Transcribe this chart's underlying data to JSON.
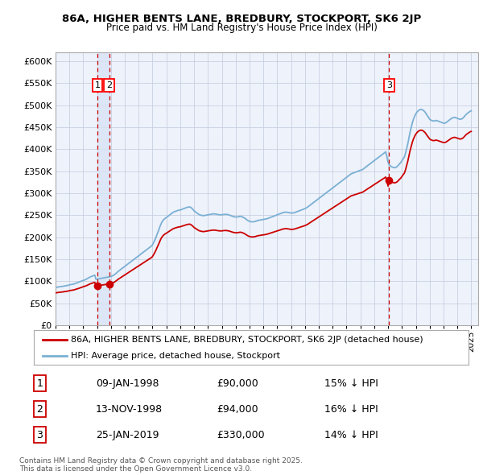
{
  "title1": "86A, HIGHER BENTS LANE, BREDBURY, STOCKPORT, SK6 2JP",
  "title2": "Price paid vs. HM Land Registry's House Price Index (HPI)",
  "ylim": [
    0,
    620000
  ],
  "yticks": [
    0,
    50000,
    100000,
    150000,
    200000,
    250000,
    300000,
    350000,
    400000,
    450000,
    500000,
    550000,
    600000
  ],
  "ytick_labels": [
    "£0",
    "£50K",
    "£100K",
    "£150K",
    "£200K",
    "£250K",
    "£300K",
    "£350K",
    "£400K",
    "£450K",
    "£500K",
    "£550K",
    "£600K"
  ],
  "xlim_start": 1995.0,
  "xlim_end": 2025.5,
  "plot_bg": "#eef2fb",
  "grid_color": "#c8d0e0",
  "sale_dates": [
    1998.03,
    1998.87,
    2019.07
  ],
  "sale_prices": [
    90000,
    94000,
    330000
  ],
  "sale_labels": [
    "1",
    "2",
    "3"
  ],
  "legend_line1": "86A, HIGHER BENTS LANE, BREDBURY, STOCKPORT, SK6 2JP (detached house)",
  "legend_line2": "HPI: Average price, detached house, Stockport",
  "table_rows": [
    [
      "1",
      "09-JAN-1998",
      "£90,000",
      "15% ↓ HPI"
    ],
    [
      "2",
      "13-NOV-1998",
      "£94,000",
      "16% ↓ HPI"
    ],
    [
      "3",
      "25-JAN-2019",
      "£330,000",
      "14% ↓ HPI"
    ]
  ],
  "footer": "Contains HM Land Registry data © Crown copyright and database right 2025.\nThis data is licensed under the Open Government Licence v3.0.",
  "red_line_color": "#cc0000",
  "blue_line_color": "#7ab0d4",
  "marker_color": "#cc0000",
  "vline_color": "#cc0000",
  "highlight_color": "#d8e4f5",
  "years_hpi": [
    1995.0,
    1995.08,
    1995.17,
    1995.25,
    1995.33,
    1995.42,
    1995.5,
    1995.58,
    1995.67,
    1995.75,
    1995.83,
    1995.92,
    1996.0,
    1996.08,
    1996.17,
    1996.25,
    1996.33,
    1996.42,
    1996.5,
    1996.58,
    1996.67,
    1996.75,
    1996.83,
    1996.92,
    1997.0,
    1997.08,
    1997.17,
    1997.25,
    1997.33,
    1997.42,
    1997.5,
    1997.58,
    1997.67,
    1997.75,
    1997.83,
    1997.92,
    1998.0,
    1998.08,
    1998.17,
    1998.25,
    1998.33,
    1998.42,
    1998.5,
    1998.58,
    1998.67,
    1998.75,
    1998.83,
    1998.92,
    1999.0,
    1999.08,
    1999.17,
    1999.25,
    1999.33,
    1999.42,
    1999.5,
    1999.58,
    1999.67,
    1999.75,
    1999.83,
    1999.92,
    2000.0,
    2000.08,
    2000.17,
    2000.25,
    2000.33,
    2000.42,
    2000.5,
    2000.58,
    2000.67,
    2000.75,
    2000.83,
    2000.92,
    2001.0,
    2001.08,
    2001.17,
    2001.25,
    2001.33,
    2001.42,
    2001.5,
    2001.58,
    2001.67,
    2001.75,
    2001.83,
    2001.92,
    2002.0,
    2002.08,
    2002.17,
    2002.25,
    2002.33,
    2002.42,
    2002.5,
    2002.58,
    2002.67,
    2002.75,
    2002.83,
    2002.92,
    2003.0,
    2003.08,
    2003.17,
    2003.25,
    2003.33,
    2003.42,
    2003.5,
    2003.58,
    2003.67,
    2003.75,
    2003.83,
    2003.92,
    2004.0,
    2004.08,
    2004.17,
    2004.25,
    2004.33,
    2004.42,
    2004.5,
    2004.58,
    2004.67,
    2004.75,
    2004.83,
    2004.92,
    2005.0,
    2005.08,
    2005.17,
    2005.25,
    2005.33,
    2005.42,
    2005.5,
    2005.58,
    2005.67,
    2005.75,
    2005.83,
    2005.92,
    2006.0,
    2006.08,
    2006.17,
    2006.25,
    2006.33,
    2006.42,
    2006.5,
    2006.58,
    2006.67,
    2006.75,
    2006.83,
    2006.92,
    2007.0,
    2007.08,
    2007.17,
    2007.25,
    2007.33,
    2007.42,
    2007.5,
    2007.58,
    2007.67,
    2007.75,
    2007.83,
    2007.92,
    2008.0,
    2008.08,
    2008.17,
    2008.25,
    2008.33,
    2008.42,
    2008.5,
    2008.58,
    2008.67,
    2008.75,
    2008.83,
    2008.92,
    2009.0,
    2009.08,
    2009.17,
    2009.25,
    2009.33,
    2009.42,
    2009.5,
    2009.58,
    2009.67,
    2009.75,
    2009.83,
    2009.92,
    2010.0,
    2010.08,
    2010.17,
    2010.25,
    2010.33,
    2010.42,
    2010.5,
    2010.58,
    2010.67,
    2010.75,
    2010.83,
    2010.92,
    2011.0,
    2011.08,
    2011.17,
    2011.25,
    2011.33,
    2011.42,
    2011.5,
    2011.58,
    2011.67,
    2011.75,
    2011.83,
    2011.92,
    2012.0,
    2012.08,
    2012.17,
    2012.25,
    2012.33,
    2012.42,
    2012.5,
    2012.58,
    2012.67,
    2012.75,
    2012.83,
    2012.92,
    2013.0,
    2013.08,
    2013.17,
    2013.25,
    2013.33,
    2013.42,
    2013.5,
    2013.58,
    2013.67,
    2013.75,
    2013.83,
    2013.92,
    2014.0,
    2014.08,
    2014.17,
    2014.25,
    2014.33,
    2014.42,
    2014.5,
    2014.58,
    2014.67,
    2014.75,
    2014.83,
    2014.92,
    2015.0,
    2015.08,
    2015.17,
    2015.25,
    2015.33,
    2015.42,
    2015.5,
    2015.58,
    2015.67,
    2015.75,
    2015.83,
    2015.92,
    2016.0,
    2016.08,
    2016.17,
    2016.25,
    2016.33,
    2016.42,
    2016.5,
    2016.58,
    2016.67,
    2016.75,
    2016.83,
    2016.92,
    2017.0,
    2017.08,
    2017.17,
    2017.25,
    2017.33,
    2017.42,
    2017.5,
    2017.58,
    2017.67,
    2017.75,
    2017.83,
    2017.92,
    2018.0,
    2018.08,
    2018.17,
    2018.25,
    2018.33,
    2018.42,
    2018.5,
    2018.58,
    2018.67,
    2018.75,
    2018.83,
    2018.92,
    2019.0,
    2019.08,
    2019.17,
    2019.25,
    2019.33,
    2019.42,
    2019.5,
    2019.58,
    2019.67,
    2019.75,
    2019.83,
    2019.92,
    2020.0,
    2020.08,
    2020.17,
    2020.25,
    2020.33,
    2020.42,
    2020.5,
    2020.58,
    2020.67,
    2020.75,
    2020.83,
    2020.92,
    2021.0,
    2021.08,
    2021.17,
    2021.25,
    2021.33,
    2021.42,
    2021.5,
    2021.58,
    2021.67,
    2021.75,
    2021.83,
    2021.92,
    2022.0,
    2022.08,
    2022.17,
    2022.25,
    2022.33,
    2022.42,
    2022.5,
    2022.58,
    2022.67,
    2022.75,
    2022.83,
    2022.92,
    2023.0,
    2023.08,
    2023.17,
    2023.25,
    2023.33,
    2023.42,
    2023.5,
    2023.58,
    2023.67,
    2023.75,
    2023.83,
    2023.92,
    2024.0,
    2024.08,
    2024.17,
    2024.25,
    2024.33,
    2024.42,
    2024.5,
    2024.58,
    2024.67,
    2024.75,
    2024.83,
    2024.92,
    2025.0
  ],
  "hpi_values": [
    86000,
    86500,
    87000,
    87500,
    87800,
    88000,
    88500,
    89000,
    89500,
    90000,
    90500,
    91000,
    92000,
    92500,
    93000,
    93500,
    94000,
    95000,
    96000,
    97000,
    98000,
    99000,
    100000,
    101000,
    102000,
    103000,
    104000,
    105500,
    107000,
    108500,
    110000,
    111000,
    112000,
    113000,
    114000,
    104500,
    105000,
    105500,
    106000,
    106500,
    107000,
    107500,
    108000,
    108500,
    109000,
    109500,
    110000,
    110500,
    111000,
    112000,
    113500,
    115000,
    117000,
    119500,
    122000,
    124000,
    126000,
    128000,
    130000,
    132000,
    134000,
    136000,
    138000,
    140000,
    142000,
    144000,
    146000,
    148000,
    150000,
    152000,
    154000,
    156000,
    158000,
    160000,
    162000,
    164000,
    166000,
    168000,
    170000,
    172000,
    174000,
    176000,
    178000,
    180000,
    183000,
    188000,
    194000,
    200000,
    207000,
    214000,
    221000,
    228000,
    234000,
    238000,
    241000,
    243000,
    245000,
    247000,
    249000,
    251000,
    253000,
    255000,
    257000,
    258000,
    259000,
    260000,
    261000,
    261500,
    262000,
    263000,
    264000,
    265000,
    266000,
    267000,
    268000,
    268500,
    269000,
    268000,
    266000,
    263000,
    260000,
    258000,
    256000,
    254000,
    252000,
    251000,
    250000,
    249500,
    249000,
    249500,
    250000,
    250500,
    251000,
    251500,
    252000,
    252500,
    253000,
    253000,
    253000,
    252500,
    252000,
    251500,
    251000,
    251000,
    251000,
    251500,
    252000,
    252000,
    252000,
    251500,
    251000,
    250000,
    249000,
    248000,
    247000,
    246500,
    246000,
    246000,
    246500,
    247000,
    247500,
    247000,
    246000,
    244500,
    243000,
    241000,
    239000,
    237500,
    236000,
    235500,
    235000,
    235000,
    235500,
    236000,
    237000,
    238000,
    238500,
    239000,
    239500,
    240000,
    240500,
    241000,
    241500,
    242000,
    243000,
    244000,
    245000,
    246000,
    247000,
    248000,
    249000,
    250000,
    251000,
    252000,
    253000,
    254000,
    255000,
    256000,
    256500,
    257000,
    257000,
    256500,
    256000,
    255500,
    255000,
    255000,
    255500,
    256000,
    257000,
    258000,
    259000,
    260000,
    261000,
    262000,
    263000,
    264000,
    265000,
    266500,
    268000,
    270000,
    272000,
    274000,
    276000,
    278000,
    280000,
    282000,
    284000,
    286000,
    288000,
    290000,
    292000,
    294000,
    296000,
    298000,
    300000,
    302000,
    304000,
    306000,
    308000,
    310000,
    312000,
    314000,
    316000,
    318000,
    320000,
    322000,
    324000,
    326000,
    328000,
    330000,
    332000,
    334000,
    336000,
    338000,
    340000,
    342000,
    344000,
    345000,
    346000,
    347000,
    348000,
    349000,
    350000,
    351000,
    352000,
    353000,
    354000,
    356000,
    358000,
    360000,
    362000,
    364000,
    366000,
    368000,
    370000,
    372000,
    374000,
    376000,
    378000,
    380000,
    382000,
    384000,
    386000,
    388000,
    390000,
    392000,
    394000,
    382000,
    370000,
    365000,
    362000,
    360000,
    359000,
    358000,
    358000,
    359000,
    361000,
    364000,
    367000,
    370000,
    374000,
    378000,
    382000,
    390000,
    400000,
    412000,
    425000,
    438000,
    450000,
    460000,
    468000,
    475000,
    480000,
    484000,
    487000,
    489000,
    490000,
    490000,
    489000,
    487000,
    484000,
    480000,
    476000,
    472000,
    468000,
    466000,
    465000,
    464000,
    464000,
    465000,
    465000,
    464000,
    463000,
    462000,
    461000,
    460000,
    459000,
    459000,
    460000,
    462000,
    464000,
    466000,
    468000,
    470000,
    471000,
    472000,
    472000,
    471000,
    470000,
    469000,
    468000,
    468000,
    469000,
    471000,
    474000,
    477000,
    480000,
    482000,
    484000,
    486000,
    487000
  ]
}
